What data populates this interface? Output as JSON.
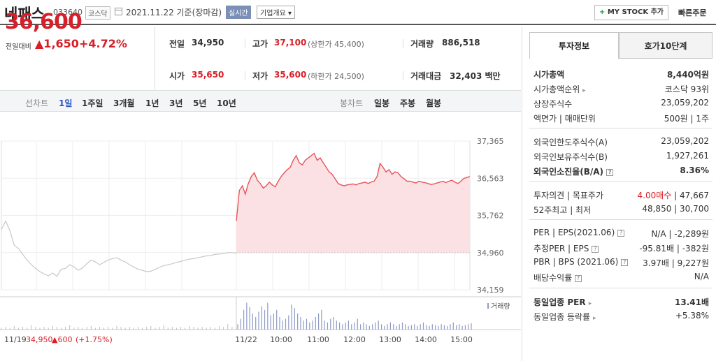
{
  "header": {
    "stock_name": "네패스",
    "stock_code": "033640",
    "market": "코스닥",
    "date_text": "2021.11.22  기준(장마감)",
    "realtime": "실시간",
    "company_overview": "기업개요 ▾",
    "mystock_plus": "+",
    "mystock_label": "MY STOCK 추가",
    "quick_order": "빠른주문"
  },
  "price": {
    "current": "36,600",
    "change_label": "전일대비",
    "change_amount": "▲1,650",
    "change_rate": "+4.72%"
  },
  "stats": {
    "prev_label": "전일",
    "prev_value": "34,950",
    "high_label": "고가",
    "high_value": "37,100",
    "upper_limit": "(상한가 45,400)",
    "volume_label": "거래량",
    "volume_value": "886,518",
    "open_label": "시가",
    "open_value": "35,650",
    "low_label": "저가",
    "low_value": "35,600",
    "lower_limit": "(하한가 24,500)",
    "amount_label": "거래대금",
    "amount_value": "32,403 백만"
  },
  "period": {
    "line_label": "선차트",
    "line_tabs": [
      "1일",
      "1주일",
      "3개월",
      "1년",
      "3년",
      "5년",
      "10년"
    ],
    "candle_label": "봉차트",
    "candle_tabs": [
      "일봉",
      "주봉",
      "월봉"
    ]
  },
  "chart_data": {
    "type": "line",
    "y_ticks": [
      "37,365",
      "36,563",
      "35,762",
      "34,960",
      "34,159"
    ],
    "ylim": [
      34159,
      37365
    ],
    "baseline": 34960,
    "x_labels": [
      "11/22",
      "10:00",
      "11:00",
      "12:00",
      "13:00",
      "14:00",
      "15:00"
    ],
    "prev_day_label": "11/19",
    "prev_day_close": "34,950",
    "prev_day_change": "▲600",
    "prev_day_rate": "(+1.75%)",
    "volume_legend": "거래량",
    "prev_series": [
      35460,
      35640,
      35430,
      35120,
      35050,
      34920,
      34800,
      34700,
      34620,
      34550,
      34500,
      34460,
      34520,
      34450,
      34600,
      34620,
      34700,
      34650,
      34580,
      34630,
      34720,
      34800,
      34760,
      34700,
      34750,
      34800,
      34830,
      34850,
      34800,
      34760,
      34700,
      34650,
      34600,
      34580,
      34550,
      34560,
      34600,
      34640,
      34680,
      34700,
      34720,
      34750,
      34770,
      34800,
      34820,
      34830,
      34850,
      34870,
      34890,
      34900,
      34920,
      34930,
      34940,
      34960,
      34960,
      34950
    ],
    "today_series": [
      35640,
      36300,
      36400,
      36220,
      36450,
      36600,
      36680,
      36520,
      36450,
      36350,
      36400,
      36480,
      36420,
      36380,
      36500,
      36600,
      36680,
      36750,
      36800,
      36950,
      37050,
      36900,
      36850,
      36950,
      37000,
      37050,
      37100,
      36950,
      37000,
      36900,
      36800,
      36700,
      36650,
      36550,
      36450,
      36420,
      36400,
      36420,
      36430,
      36440,
      36420,
      36450,
      36460,
      36480,
      36450,
      36480,
      36500,
      36600,
      36880,
      36800,
      36700,
      36750,
      36650,
      36700,
      36680,
      36600,
      36550,
      36500,
      36500,
      36480,
      36460,
      36500,
      36480,
      36470,
      36450,
      36430,
      36440,
      36460,
      36480,
      36500,
      36470,
      36500,
      36520,
      36480,
      36450,
      36500,
      36560,
      36580,
      36600
    ],
    "volume_prev": [
      2,
      3,
      2,
      4,
      2,
      3,
      2,
      5,
      3,
      2,
      3,
      2,
      4,
      3,
      2,
      3,
      5,
      2,
      3,
      2,
      3,
      4,
      2,
      3,
      2,
      3,
      2,
      4,
      3,
      2,
      3,
      2,
      3,
      2,
      3,
      4,
      2,
      3,
      5,
      2,
      3,
      2,
      3,
      2,
      4,
      3,
      2,
      3,
      2,
      3,
      2,
      4,
      3,
      6,
      3,
      2
    ],
    "volume_today": [
      6,
      12,
      22,
      30,
      25,
      18,
      14,
      20,
      26,
      22,
      30,
      16,
      18,
      22,
      14,
      10,
      12,
      16,
      28,
      24,
      18,
      14,
      10,
      12,
      8,
      10,
      14,
      18,
      22,
      10,
      8,
      12,
      14,
      10,
      8,
      6,
      8,
      10,
      6,
      8,
      12,
      6,
      8,
      6,
      4,
      6,
      8,
      10,
      6,
      4,
      6,
      8,
      6,
      4,
      6,
      8,
      6,
      4,
      5,
      6,
      4,
      6,
      8,
      5,
      4,
      6,
      5,
      4,
      6,
      5,
      4,
      6,
      8,
      5,
      6,
      4,
      5,
      6,
      7
    ]
  },
  "info": {
    "tab_invest": "투자정보",
    "tab_hoga": "호가10단계",
    "market_cap_label": "시가총액",
    "market_cap_value": "8,440억원",
    "cap_rank_label": "시가총액순위",
    "cap_rank_value": "코스닥 93위",
    "shares_label": "상장주식수",
    "shares_value": "23,059,202",
    "par_label": "액면가 | 매매단위",
    "par_value": "500원 | 1주",
    "foreign_limit_label": "외국인한도주식수(A)",
    "foreign_limit_value": "23,059,202",
    "foreign_hold_label": "외국인보유주식수(B)",
    "foreign_hold_value": "1,927,261",
    "foreign_rate_label": "외국인소진율(B/A)",
    "foreign_rate_value": "8.36%",
    "opinion_label": "투자의견 | 목표주가",
    "opinion_value": "4.00매수",
    "target_value": "47,667",
    "week52_label": "52주최고 | 최저",
    "week52_value": "48,850 | 30,700",
    "per_label": "PER | EPS(2021.06)",
    "per_value": "N/A | -2,289원",
    "est_per_label": "추정PER | EPS",
    "est_per_value": "-95.81배 | -382원",
    "pbr_label": "PBR | BPS (2021.06)",
    "pbr_value": "3.97배 | 9,227원",
    "dividend_label": "배당수익률",
    "dividend_value": "N/A",
    "sector_per_label": "동일업종 PER",
    "sector_per_value": "13.41배",
    "sector_rate_label": "동일업종 등락률",
    "sector_rate_value": "+5.38%"
  }
}
